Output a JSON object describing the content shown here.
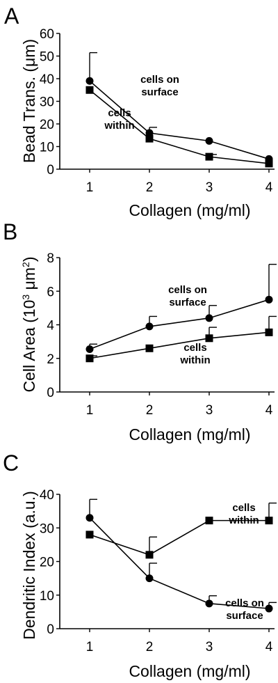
{
  "chart_data": [
    {
      "type": "line",
      "panel": "A",
      "xlabel": "Collagen (mg/ml)",
      "ylabel": "Bead Trans. (μm)",
      "x": [
        1,
        2,
        3,
        4
      ],
      "xlim": [
        0.5,
        4
      ],
      "ylim": [
        0,
        60
      ],
      "yticks": [
        0,
        10,
        20,
        30,
        40,
        50,
        60
      ],
      "series": [
        {
          "marker": "circle",
          "values": [
            39,
            16,
            12.5,
            4.5
          ],
          "error": [
            12.5,
            2.5,
            0,
            0
          ],
          "label_lines": [
            "cells on",
            "surface"
          ]
        },
        {
          "marker": "square",
          "values": [
            35,
            13.5,
            5.5,
            2.5
          ],
          "error": [
            0,
            0,
            1,
            0
          ],
          "label_lines": [
            "cells",
            "within"
          ]
        }
      ]
    },
    {
      "type": "line",
      "panel": "B",
      "xlabel": "Collagen (mg/ml)",
      "ylabel": "Cell Area (10",
      "ylabel_sup": "3",
      "ylabel_unit": " μm",
      "ylabel_unit_sup": "2",
      "ylabel_close": ")",
      "x": [
        1,
        2,
        3,
        4
      ],
      "xlim": [
        0.5,
        4
      ],
      "ylim": [
        0,
        8
      ],
      "yticks": [
        0,
        2,
        4,
        6,
        8
      ],
      "series": [
        {
          "marker": "circle",
          "values": [
            2.55,
            3.9,
            4.4,
            5.5
          ],
          "error": [
            0.3,
            0.6,
            0.75,
            2.1
          ],
          "label_lines": [
            "cells on",
            "surface"
          ]
        },
        {
          "marker": "square",
          "values": [
            2.0,
            2.6,
            3.2,
            3.55
          ],
          "error": [
            0.15,
            0,
            0.65,
            0.95
          ],
          "label_lines": [
            "cells",
            "within"
          ]
        }
      ]
    },
    {
      "type": "line",
      "panel": "C",
      "xlabel": "Collagen (mg/ml)",
      "ylabel": "Dendritic Index (a.u.)",
      "x": [
        1,
        2,
        3,
        4
      ],
      "xlim": [
        0.5,
        4
      ],
      "ylim": [
        0,
        40
      ],
      "yticks": [
        0,
        10,
        20,
        30,
        40
      ],
      "series": [
        {
          "marker": "circle",
          "values": [
            33,
            15,
            7.5,
            6
          ],
          "error": [
            5.5,
            4.5,
            2.3,
            1.8
          ],
          "label_lines": [
            "cells on",
            "surface"
          ]
        },
        {
          "marker": "square",
          "values": [
            28,
            22,
            32.2,
            32.2
          ],
          "error": [
            0,
            5.3,
            0,
            5.2
          ],
          "label_lines": [
            "cells",
            "within"
          ]
        }
      ]
    }
  ]
}
